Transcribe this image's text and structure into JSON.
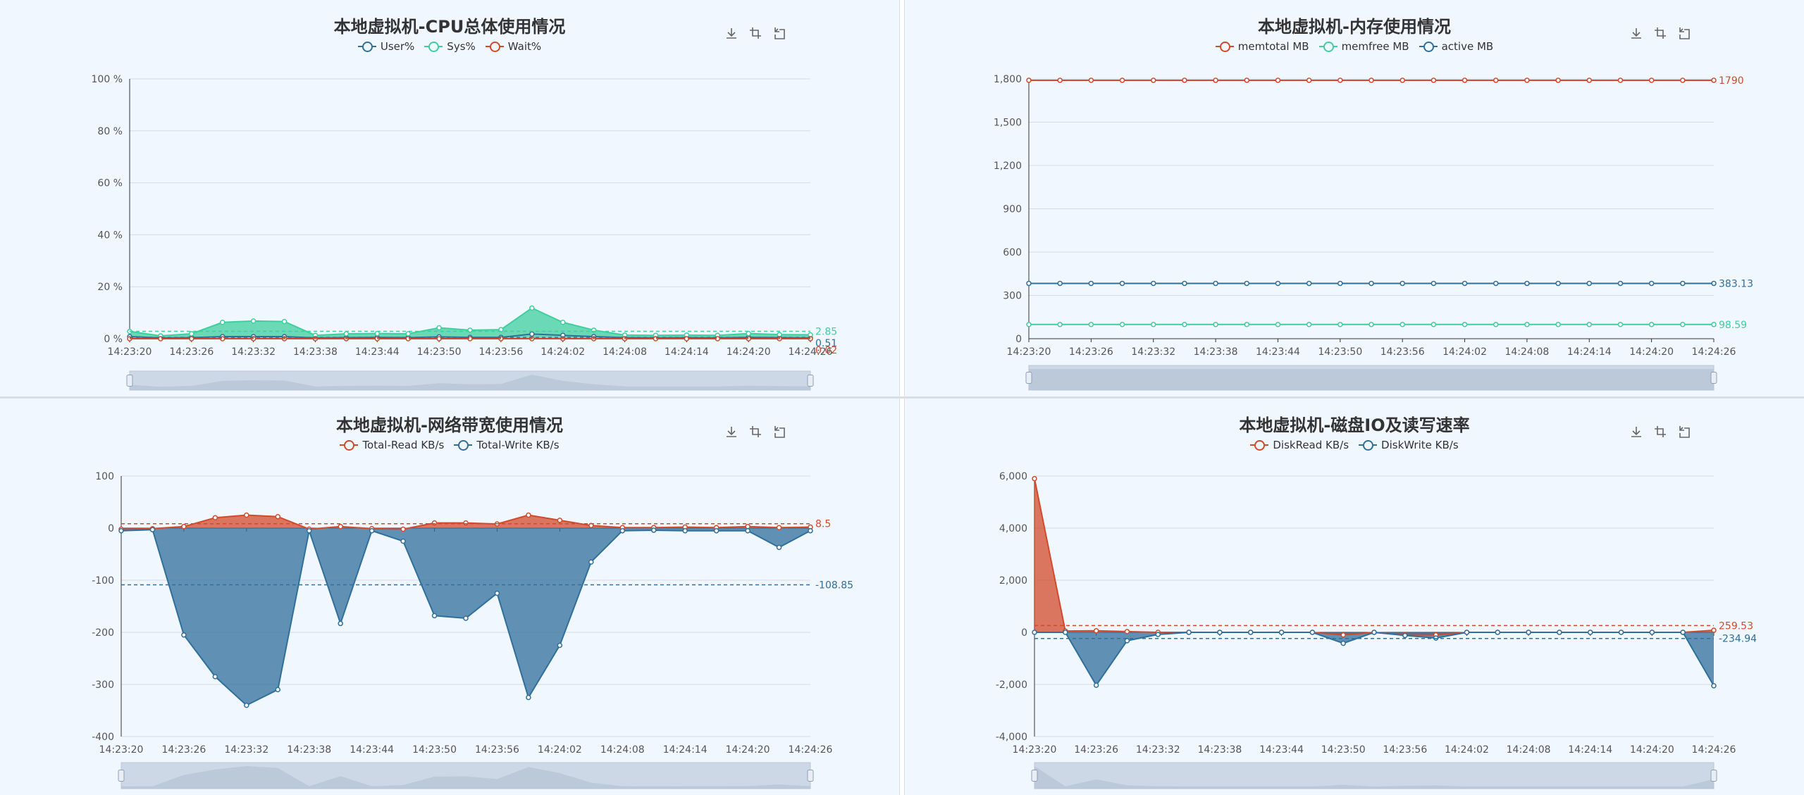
{
  "x_labels": [
    "14:23:20",
    "14:23:26",
    "14:23:32",
    "14:23:38",
    "14:23:44",
    "14:23:50",
    "14:23:56",
    "14:24:02",
    "14:24:08",
    "14:24:14",
    "14:24:20",
    "14:24:26"
  ],
  "colors": {
    "red": "#d14a2b",
    "teal": "#3fcf9e",
    "blue": "#2f6f9c",
    "grid": "#d5dae3",
    "axis": "#333333"
  },
  "chart_data": [
    {
      "type": "line",
      "title": "本地虚拟机-CPU总体使用情况",
      "categories": [
        "14:23:20",
        "14:23:23",
        "14:23:26",
        "14:23:29",
        "14:23:32",
        "14:23:35",
        "14:23:38",
        "14:23:41",
        "14:23:44",
        "14:23:47",
        "14:23:50",
        "14:23:53",
        "14:23:56",
        "14:23:59",
        "14:24:02",
        "14:24:05",
        "14:24:08",
        "14:24:11",
        "14:24:14",
        "14:24:17",
        "14:24:20",
        "14:24:23",
        "14:24:26"
      ],
      "ylim": [
        0,
        100
      ],
      "y_ticks": [
        0,
        20,
        40,
        60,
        80,
        100
      ],
      "y_tick_labels": [
        "0 %",
        "20 %",
        "40 %",
        "60 %",
        "80 %",
        "100 %"
      ],
      "grid": true,
      "legend_position": "top-center",
      "series": [
        {
          "name": "User%",
          "color": "#2f6f9c",
          "area": false,
          "stack": "cpu",
          "values": [
            0.8,
            0.3,
            0.4,
            0.8,
            0.8,
            0.8,
            0.3,
            0.4,
            0.5,
            0.4,
            0.7,
            0.5,
            0.5,
            1.8,
            1.3,
            0.8,
            0.4,
            0.3,
            0.4,
            0.3,
            0.5,
            0.4,
            0.3
          ]
        },
        {
          "name": "Sys%",
          "color": "#3fcf9e",
          "area": true,
          "stack": "cpu",
          "values": [
            2,
            0.8,
            1.5,
            5.5,
            6,
            5.8,
            1,
            1.5,
            1.5,
            1.5,
            3.5,
            2.8,
            3,
            10,
            5,
            2.5,
            1,
            1,
            1,
            1,
            1.5,
            1.2,
            1.2
          ]
        },
        {
          "name": "Wait%",
          "color": "#d14a2b",
          "area": false,
          "stack": null,
          "values": [
            0,
            0,
            0,
            0,
            0,
            0,
            0,
            0,
            0,
            0,
            0,
            0,
            0,
            0,
            0,
            0,
            0,
            0,
            0,
            0,
            0,
            0,
            0
          ]
        }
      ],
      "mark_lines": [
        {
          "series": "Sys%",
          "value": 2.85,
          "label": "2.85"
        },
        {
          "series": "User%",
          "value": 0.51,
          "label": "0.51"
        },
        {
          "series": "Wait%",
          "value": 0.02,
          "label": "0.02"
        }
      ]
    },
    {
      "type": "line",
      "title": "本地虚拟机-内存使用情况",
      "categories": [
        "14:23:20",
        "14:23:23",
        "14:23:26",
        "14:23:29",
        "14:23:32",
        "14:23:35",
        "14:23:38",
        "14:23:41",
        "14:23:44",
        "14:23:47",
        "14:23:50",
        "14:23:53",
        "14:23:56",
        "14:23:59",
        "14:24:02",
        "14:24:05",
        "14:24:08",
        "14:24:11",
        "14:24:14",
        "14:24:17",
        "14:24:20",
        "14:24:23",
        "14:24:26"
      ],
      "ylim": [
        0,
        1800
      ],
      "y_ticks": [
        0,
        300,
        600,
        900,
        1200,
        1500,
        1800
      ],
      "y_tick_labels": [
        "0",
        "300",
        "600",
        "900",
        "1,200",
        "1,500",
        "1,800"
      ],
      "grid": true,
      "legend_position": "top-center",
      "series": [
        {
          "name": "memtotal MB",
          "color": "#d14a2b",
          "area": false,
          "stack": null,
          "values": [
            1790,
            1790,
            1790,
            1790,
            1790,
            1790,
            1790,
            1790,
            1790,
            1790,
            1790,
            1790,
            1790,
            1790,
            1790,
            1790,
            1790,
            1790,
            1790,
            1790,
            1790,
            1790,
            1790
          ]
        },
        {
          "name": "memfree MB",
          "color": "#3fcf9e",
          "area": false,
          "stack": null,
          "values": [
            98.59,
            98.59,
            98.59,
            98.59,
            98.59,
            98.59,
            98.59,
            98.59,
            98.59,
            98.59,
            98.59,
            98.59,
            98.59,
            98.59,
            98.59,
            98.59,
            98.59,
            98.59,
            98.59,
            98.59,
            98.59,
            98.59,
            98.59
          ]
        },
        {
          "name": "active MB",
          "color": "#2f6f9c",
          "area": false,
          "stack": null,
          "values": [
            383.13,
            383.13,
            383.13,
            383.13,
            383.13,
            383.13,
            383.13,
            383.13,
            383.13,
            383.13,
            383.13,
            383.13,
            383.13,
            383.13,
            383.13,
            383.13,
            383.13,
            383.13,
            383.13,
            383.13,
            383.13,
            383.13,
            383.13
          ]
        }
      ],
      "mark_lines": [
        {
          "series": "memtotal MB",
          "value": 1790,
          "label": "1790",
          "end_label": true
        },
        {
          "series": "active MB",
          "value": 383.13,
          "label": "383.13",
          "end_label": true
        },
        {
          "series": "memfree MB",
          "value": 98.59,
          "label": "98.59",
          "end_label": true
        }
      ]
    },
    {
      "type": "area",
      "title": "本地虚拟机-网络带宽使用情况",
      "categories": [
        "14:23:20",
        "14:23:23",
        "14:23:26",
        "14:23:29",
        "14:23:32",
        "14:23:35",
        "14:23:38",
        "14:23:41",
        "14:23:44",
        "14:23:47",
        "14:23:50",
        "14:23:53",
        "14:23:56",
        "14:23:59",
        "14:24:02",
        "14:24:05",
        "14:24:08",
        "14:24:11",
        "14:24:14",
        "14:24:17",
        "14:24:20",
        "14:24:23",
        "14:24:26"
      ],
      "ylim": [
        -400,
        100
      ],
      "y_ticks": [
        -400,
        -300,
        -200,
        -100,
        0,
        100
      ],
      "y_tick_labels": [
        "-400",
        "-300",
        "-200",
        "-100",
        "0",
        "100"
      ],
      "grid": true,
      "legend_position": "top-center",
      "series": [
        {
          "name": "Total-Read KB/s",
          "color": "#d14a2b",
          "area": true,
          "stack": null,
          "values": [
            -2,
            -1,
            3,
            20,
            25,
            22,
            -2,
            3,
            -1,
            -2,
            10,
            10,
            8,
            25,
            15,
            5,
            1,
            1,
            2,
            1,
            3,
            1,
            2
          ]
        },
        {
          "name": "Total-Write KB/s",
          "color": "#2f6f9c",
          "area": true,
          "stack": null,
          "values": [
            -5,
            -3,
            -205,
            -285,
            -340,
            -310,
            -5,
            -183,
            -5,
            -25,
            -168,
            -173,
            -125,
            -325,
            -225,
            -65,
            -5,
            -4,
            -5,
            -5,
            -5,
            -37,
            -5
          ]
        }
      ],
      "mark_lines": [
        {
          "series": "Total-Read KB/s",
          "value": 8.5,
          "label": "8.5"
        },
        {
          "series": "Total-Write KB/s",
          "value": -108.85,
          "label": "-108.85"
        }
      ]
    },
    {
      "type": "area",
      "title": "本地虚拟机-磁盘IO及读写速率",
      "categories": [
        "14:23:20",
        "14:23:23",
        "14:23:26",
        "14:23:29",
        "14:23:32",
        "14:23:35",
        "14:23:38",
        "14:23:41",
        "14:23:44",
        "14:23:47",
        "14:23:50",
        "14:23:53",
        "14:23:56",
        "14:23:59",
        "14:24:02",
        "14:24:05",
        "14:24:08",
        "14:24:11",
        "14:24:14",
        "14:24:17",
        "14:24:20",
        "14:24:23",
        "14:24:26"
      ],
      "ylim": [
        -4000,
        6000
      ],
      "y_ticks": [
        -4000,
        -2000,
        0,
        2000,
        4000,
        6000
      ],
      "y_tick_labels": [
        "-4,000",
        "-2,000",
        "0",
        "2,000",
        "4,000",
        "6,000"
      ],
      "grid": true,
      "legend_position": "top-center",
      "series": [
        {
          "name": "DiskRead KB/s",
          "color": "#d14a2b",
          "area": true,
          "stack": null,
          "values": [
            5900,
            50,
            60,
            30,
            0,
            0,
            0,
            0,
            0,
            0,
            -100,
            0,
            -100,
            -100,
            0,
            0,
            0,
            0,
            0,
            0,
            0,
            0,
            80
          ]
        },
        {
          "name": "DiskWrite KB/s",
          "color": "#2f6f9c",
          "area": true,
          "stack": null,
          "values": [
            0,
            0,
            -2030,
            -320,
            -80,
            0,
            0,
            0,
            0,
            0,
            -420,
            0,
            -120,
            -220,
            0,
            0,
            0,
            0,
            0,
            0,
            0,
            0,
            -2050
          ]
        }
      ],
      "mark_lines": [
        {
          "series": "DiskRead KB/s",
          "value": 259.53,
          "label": "259.53"
        },
        {
          "series": "DiskWrite KB/s",
          "value": -234.94,
          "label": "-234.94"
        }
      ]
    }
  ]
}
